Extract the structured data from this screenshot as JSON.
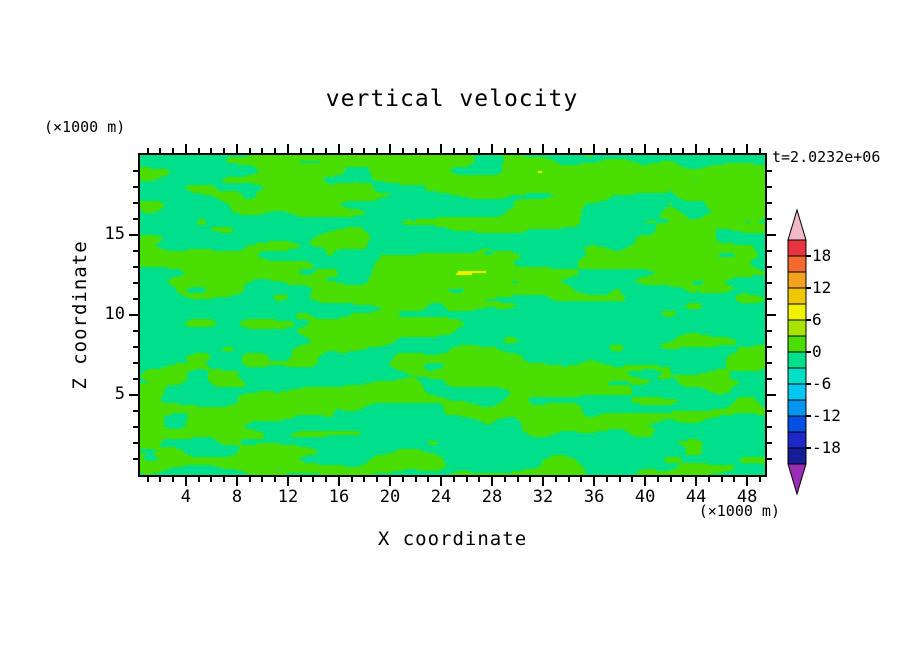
{
  "chart_data": {
    "type": "heatmap",
    "title": "vertical velocity",
    "xlabel": "X coordinate",
    "zlabel": "Z coordinate",
    "x_unit": "(×1000 m)",
    "z_unit": "(×1000 m)",
    "time_annotation": "t=2.0232e+06",
    "xlim": [
      0.4,
      49.4
    ],
    "zlim": [
      0,
      20
    ],
    "x_axis": {
      "major_ticks": [
        4,
        8,
        12,
        16,
        20,
        24,
        28,
        32,
        36,
        40,
        44,
        48
      ],
      "minor_step": 1
    },
    "z_axis": {
      "major_ticks": [
        5,
        10,
        15
      ],
      "minor_step": 1
    },
    "colorbar": {
      "tick_labels": [
        "18",
        "12",
        "6",
        "0",
        "-6",
        "-12",
        "-18"
      ],
      "level_max": 21,
      "level_min": -21,
      "level_step": 3,
      "arrow_top_color": "#F2B9C6",
      "arrow_bottom_color": "#9A2DB4",
      "segment_colors_top_to_bottom": [
        "#E8343F",
        "#F26A2E",
        "#F5A01E",
        "#F0C800",
        "#F0F000",
        "#A8E400",
        "#4ADE00",
        "#00E08A",
        "#00E0C8",
        "#00C8F0",
        "#0096F0",
        "#0050E6",
        "#1E28C8",
        "#141E96"
      ]
    },
    "field": {
      "base_color": "#00E08A",
      "blob_color": "#4ADE00",
      "speck_color": "#F0F000",
      "blob_threshold": 0.52,
      "speck_threshold": 0.94,
      "description": "Filled contour field of vertical velocity; values mostly within -3 to +3 (two green fill levels forming horizontally elongated interlocking blobs) with rare small yellow specks reaching the +6 to +9 level near the bottom of the domain."
    }
  }
}
